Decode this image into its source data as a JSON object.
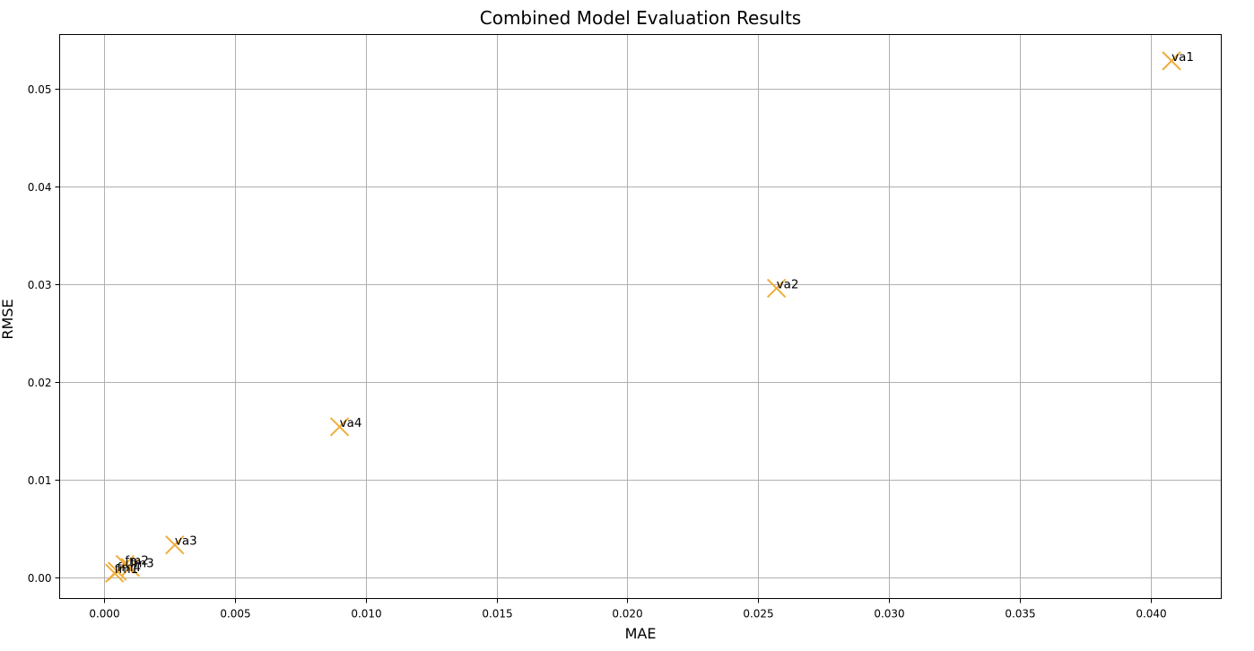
{
  "chart_data": {
    "type": "scatter",
    "title": "Combined Model Evaluation Results",
    "xlabel": "MAE",
    "ylabel": "RMSE",
    "xlim": [
      -0.0017,
      0.0427
    ],
    "ylim": [
      -0.0022,
      0.0556
    ],
    "x_ticks": [
      0.0,
      0.005,
      0.01,
      0.015,
      0.02,
      0.025,
      0.03,
      0.035,
      0.04
    ],
    "x_tick_labels": [
      "0.000",
      "0.005",
      "0.010",
      "0.015",
      "0.020",
      "0.025",
      "0.030",
      "0.035",
      "0.040"
    ],
    "y_ticks": [
      0.0,
      0.01,
      0.02,
      0.03,
      0.04,
      0.05
    ],
    "y_tick_labels": [
      "0.00",
      "0.01",
      "0.02",
      "0.03",
      "0.04",
      "0.05"
    ],
    "grid": true,
    "marker": "x",
    "marker_color": "#f0ad3a",
    "points": [
      {
        "label": "va1",
        "x": 0.0408,
        "y": 0.0529
      },
      {
        "label": "va2",
        "x": 0.0257,
        "y": 0.0296
      },
      {
        "label": "va4",
        "x": 0.009,
        "y": 0.0154
      },
      {
        "label": "va3",
        "x": 0.0027,
        "y": 0.0033
      },
      {
        "label": "fm2",
        "x": 0.0008,
        "y": 0.0013
      },
      {
        "label": "fm3",
        "x": 0.001,
        "y": 0.001
      },
      {
        "label": "fm4",
        "x": 0.0005,
        "y": 0.0006
      },
      {
        "label": "fm1",
        "x": 0.0004,
        "y": 0.0004
      }
    ]
  }
}
